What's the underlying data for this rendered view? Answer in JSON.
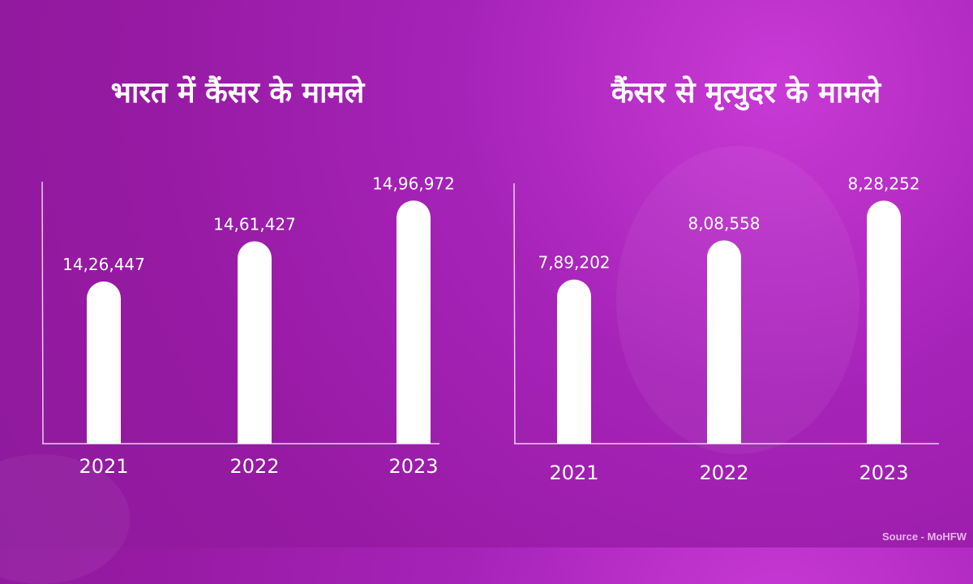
{
  "colors": {
    "bar": "#ffffff",
    "axis": "#e8d0ee"
  },
  "source": "Source - MoHFW",
  "chart_data": [
    {
      "type": "bar",
      "title": "भारत में कैंसर के मामले",
      "categories": [
        "2021",
        "2022",
        "2023"
      ],
      "values": [
        1426447,
        1461427,
        1496972
      ],
      "value_labels": [
        "14,26,447",
        "14,61,427",
        "14,96,972"
      ],
      "xlabel": "",
      "ylabel": "",
      "ylim": [
        1285000,
        1500000
      ],
      "grid": false
    },
    {
      "type": "bar",
      "title": "कैंसर से मृत्युदर के मामले",
      "categories": [
        "2021",
        "2022",
        "2023"
      ],
      "values": [
        789202,
        808558,
        828252
      ],
      "value_labels": [
        "7,89,202",
        "8,08,558",
        "8,28,252"
      ],
      "xlabel": "",
      "ylabel": "",
      "ylim": [
        708000,
        830000
      ],
      "grid": false
    }
  ]
}
